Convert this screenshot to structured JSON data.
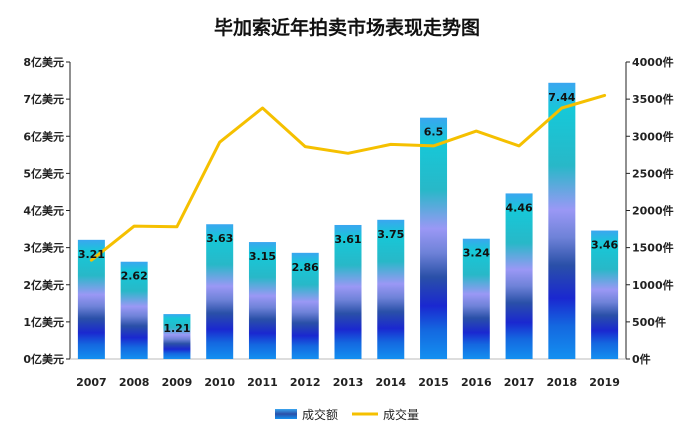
{
  "chart_data": {
    "type": "bar",
    "title": "毕加索近年拍卖市场表现走势图",
    "categories": [
      "2007",
      "2008",
      "2009",
      "2010",
      "2011",
      "2012",
      "2013",
      "2014",
      "2015",
      "2016",
      "2017",
      "2018",
      "2019"
    ],
    "series": [
      {
        "name": "成交额",
        "type": "bar",
        "axis": "left",
        "values": [
          3.21,
          2.62,
          1.21,
          3.63,
          3.15,
          2.86,
          3.61,
          3.75,
          6.5,
          3.24,
          4.46,
          7.44,
          3.46
        ],
        "data_labels": [
          "3.21",
          "2.62",
          "1.21",
          "3.63",
          "3.15",
          "2.86",
          "3.61",
          "3.75",
          "6.5",
          "3.24",
          "4.46",
          "7.44",
          "3.46"
        ],
        "color": "#1e90ff"
      },
      {
        "name": "成交量",
        "type": "line",
        "axis": "right",
        "values": [
          1330,
          1790,
          1780,
          2920,
          3380,
          2860,
          2770,
          2890,
          2870,
          3070,
          2870,
          3380,
          3550
        ],
        "color": "#f5c000"
      }
    ],
    "y_left": {
      "ylim": [
        0,
        8
      ],
      "ticks": [
        0,
        1,
        2,
        3,
        4,
        5,
        6,
        7,
        8
      ],
      "tick_labels": [
        "0亿美元",
        "1亿美元",
        "2亿美元",
        "3亿美元",
        "4亿美元",
        "5亿美元",
        "6亿美元",
        "7亿美元",
        "8亿美元"
      ]
    },
    "y_right": {
      "ylim": [
        0,
        4000
      ],
      "ticks": [
        0,
        500,
        1000,
        1500,
        2000,
        2500,
        3000,
        3500,
        4000
      ],
      "tick_labels": [
        "0件",
        "500件",
        "1000件",
        "1500件",
        "2000件",
        "2500件",
        "3000件",
        "3500件",
        "4000件"
      ]
    },
    "legend": {
      "position": "bottom",
      "items": [
        "成交额",
        "成交量"
      ]
    },
    "grid": false
  }
}
